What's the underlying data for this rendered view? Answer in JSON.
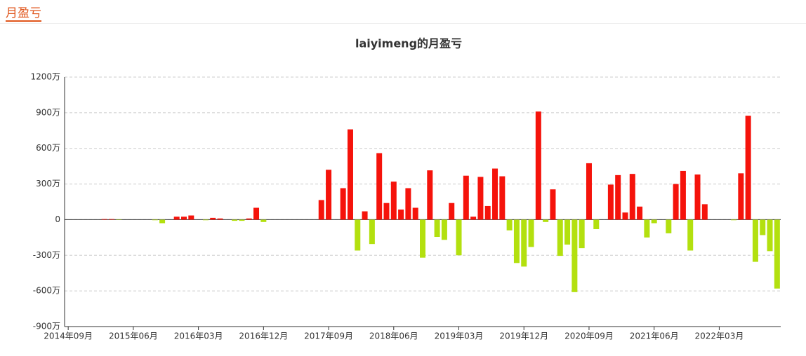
{
  "header": {
    "title": "月盈亏"
  },
  "chart_data": {
    "type": "bar",
    "title": "laiyimeng的月盈亏",
    "categories": [
      "2014年09月",
      null,
      null,
      null,
      null,
      null,
      null,
      null,
      null,
      "2015年06月",
      null,
      null,
      null,
      null,
      null,
      null,
      null,
      null,
      "2016年03月",
      null,
      null,
      null,
      null,
      null,
      null,
      null,
      null,
      "2016年12月",
      null,
      null,
      null,
      null,
      null,
      null,
      null,
      null,
      "2017年09月",
      null,
      null,
      null,
      null,
      null,
      null,
      null,
      null,
      "2018年06月",
      null,
      null,
      null,
      null,
      null,
      null,
      null,
      null,
      "2019年03月",
      null,
      null,
      null,
      null,
      null,
      null,
      null,
      null,
      "2019年12月",
      null,
      null,
      null,
      null,
      null,
      null,
      null,
      null,
      "2020年09月",
      null,
      null,
      null,
      null,
      null,
      null,
      null,
      null,
      "2021年06月",
      null,
      null,
      null,
      null,
      null,
      null,
      null,
      null,
      "2022年03月",
      null,
      null,
      null,
      null,
      null,
      null,
      null,
      null
    ],
    "values": [
      0,
      0,
      0,
      0,
      0,
      5,
      5,
      -3,
      0,
      0,
      0,
      0,
      -5,
      -30,
      0,
      25,
      25,
      35,
      0,
      -5,
      15,
      10,
      0,
      -10,
      -10,
      10,
      100,
      -20,
      0,
      0,
      0,
      0,
      0,
      0,
      0,
      165,
      420,
      0,
      265,
      760,
      -260,
      70,
      -205,
      560,
      140,
      320,
      85,
      265,
      100,
      -320,
      415,
      -145,
      -170,
      140,
      -300,
      370,
      25,
      360,
      115,
      430,
      365,
      -90,
      -365,
      -395,
      -230,
      910,
      -20,
      255,
      -305,
      -210,
      -610,
      -240,
      475,
      -80,
      0,
      295,
      375,
      60,
      385,
      110,
      -150,
      -30,
      0,
      -115,
      300,
      410,
      -260,
      380,
      130,
      0,
      0,
      0,
      -5,
      390,
      875,
      -355,
      -130,
      -265,
      -580
    ],
    "positive_color": "#f5130b",
    "negative_color": "#b3e00f",
    "ylim": [
      -900,
      1200
    ],
    "yticks": [
      {
        "value": -900,
        "label": "-900万"
      },
      {
        "value": -600,
        "label": "-600万"
      },
      {
        "value": -300,
        "label": "-300万"
      },
      {
        "value": 0,
        "label": "0"
      },
      {
        "value": 300,
        "label": "300万"
      },
      {
        "value": 600,
        "label": "600万"
      },
      {
        "value": 900,
        "label": "900万"
      },
      {
        "value": 1200,
        "label": "1200万"
      }
    ],
    "grid": true
  }
}
